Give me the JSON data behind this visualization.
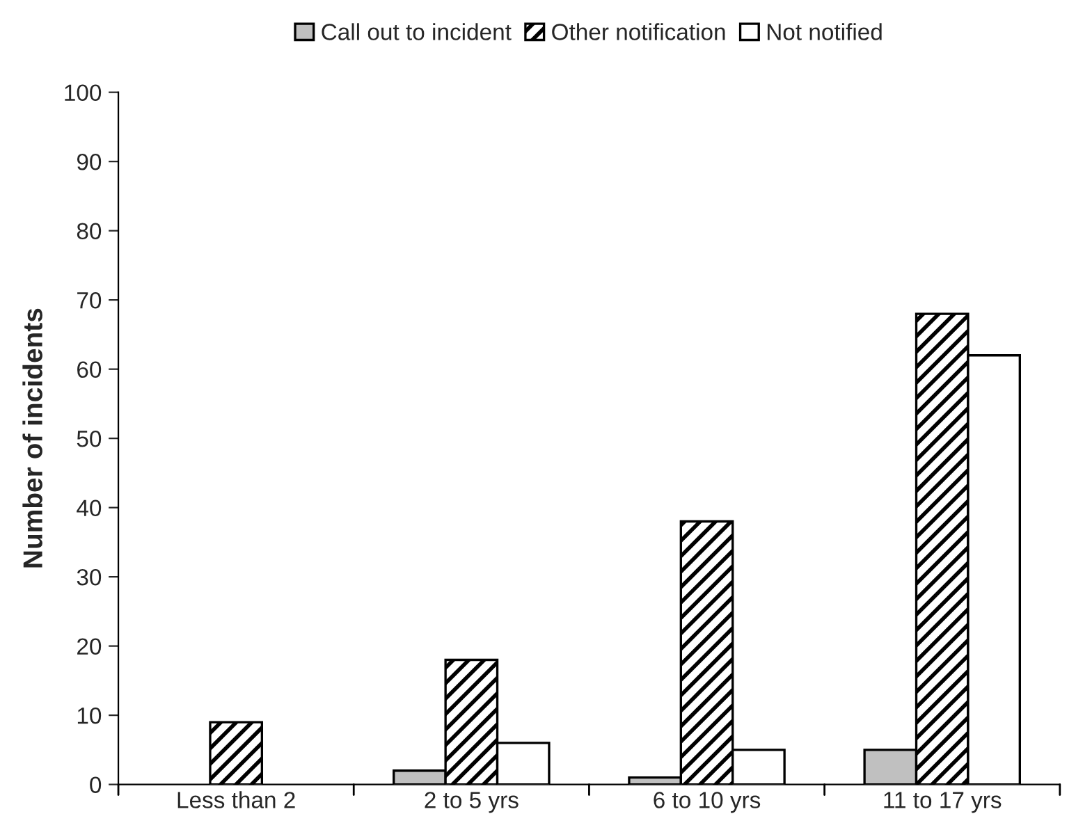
{
  "chart_data": {
    "type": "bar",
    "ylabel": "Number of incidents",
    "categories": [
      "Less than 2",
      "2 to 5 yrs",
      "6 to 10 yrs",
      "11 to 17 yrs"
    ],
    "series": [
      {
        "name": "Call out to incident",
        "color": "#c0c0c0",
        "values": [
          0,
          2,
          1,
          5
        ]
      },
      {
        "name": "Other notification",
        "color": "#000000",
        "values": [
          9,
          18,
          38,
          68
        ]
      },
      {
        "name": "Not notified",
        "color": "#ffffff",
        "values": [
          0,
          6,
          5,
          62
        ]
      }
    ],
    "ylim": [
      0,
      100
    ],
    "yticks": [
      0,
      10,
      20,
      30,
      40,
      50,
      60,
      70,
      80,
      90,
      100
    ],
    "grid": false,
    "legend": "top"
  }
}
